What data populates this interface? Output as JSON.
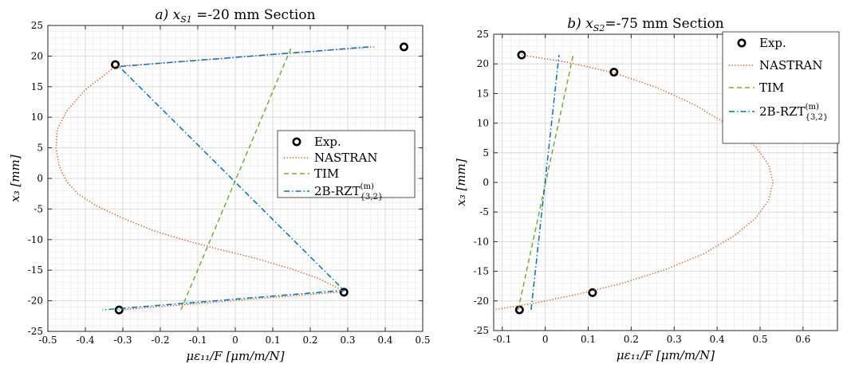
{
  "chart_data": [
    {
      "type": "line",
      "title_parts": {
        "pre": "a) x",
        "sub": "S1",
        "post": " =-20 mm Section"
      },
      "xlabel": "με₁₁/F [μm/m/N]",
      "ylabel": "x₃ [mm]",
      "xlim": [
        -0.5,
        0.5
      ],
      "ylim": [
        -25,
        25
      ],
      "xticks": [
        -0.5,
        -0.4,
        -0.3,
        -0.2,
        -0.1,
        0,
        0.1,
        0.2,
        0.3,
        0.4,
        0.5
      ],
      "xtick_labels": [
        "-0.5",
        "-0.4",
        "-0.3",
        "-0.2",
        "-0.1",
        "0",
        "0.1",
        "0.2",
        "0.3",
        "0.4",
        "0.5"
      ],
      "yticks": [
        -25,
        -20,
        -15,
        -10,
        -5,
        0,
        5,
        10,
        15,
        20,
        25
      ],
      "ytick_labels": [
        "-25",
        "-20",
        "-15",
        "-10",
        "-5",
        "0",
        "5",
        "10",
        "15",
        "20",
        "25"
      ],
      "grid": true,
      "legend_position": "center-right",
      "series": [
        {
          "name": "Exp.",
          "kind": "markers",
          "color": "#000000",
          "points": [
            [
              -0.32,
              18.6
            ],
            [
              0.45,
              21.5
            ],
            [
              0.29,
              -18.6
            ],
            [
              -0.31,
              -21.5
            ]
          ]
        },
        {
          "name": "NASTRAN",
          "kind": "dotted",
          "color": "#d95319",
          "points": [
            [
              0.37,
              21.5
            ],
            [
              -0.32,
              18.3
            ],
            [
              -0.4,
              14.5
            ],
            [
              -0.45,
              11.0
            ],
            [
              -0.475,
              8.0
            ],
            [
              -0.478,
              5.0
            ],
            [
              -0.47,
              2.0
            ],
            [
              -0.45,
              -0.5
            ],
            [
              -0.42,
              -2.5
            ],
            [
              -0.37,
              -4.5
            ],
            [
              -0.3,
              -6.5
            ],
            [
              -0.22,
              -8.5
            ],
            [
              -0.14,
              -10.0
            ],
            [
              -0.05,
              -11.5
            ],
            [
              0.05,
              -13.0
            ],
            [
              0.15,
              -14.8
            ],
            [
              0.22,
              -16.3
            ],
            [
              0.27,
              -17.8
            ],
            [
              0.29,
              -18.5
            ],
            [
              -0.31,
              -21.5
            ]
          ]
        },
        {
          "name": "TIM",
          "kind": "dashed",
          "color": "#77ac30",
          "points": [
            [
              -0.145,
              -21.5
            ],
            [
              0.15,
              21.5
            ]
          ]
        },
        {
          "name": "2B-RZT",
          "kind": "dashdot",
          "color": "#0072bd",
          "legend_label": {
            "pre": "2B-RZT",
            "sup": "(m)",
            "sub": "{3,2}"
          },
          "points": [
            [
              0.355,
              21.5
            ],
            [
              -0.31,
              18.3
            ],
            [
              0.29,
              -18.3
            ],
            [
              -0.355,
              -21.5
            ]
          ]
        }
      ]
    },
    {
      "type": "line",
      "title_parts": {
        "pre": "b) x",
        "sub": "S2",
        "post": "=-75 mm Section"
      },
      "xlabel": "με₁₁/F [μm/m/N]",
      "ylabel": "x₃ [mm]",
      "xlim": [
        -0.12,
        0.68
      ],
      "ylim": [
        -25,
        25
      ],
      "xticks": [
        -0.1,
        0,
        0.1,
        0.2,
        0.3,
        0.4,
        0.5,
        0.6
      ],
      "xtick_labels": [
        "-0.1",
        "0",
        "0.1",
        "0.2",
        "0.3",
        "0.4",
        "0.5",
        "0.6"
      ],
      "yticks": [
        -25,
        -20,
        -15,
        -10,
        -5,
        0,
        5,
        10,
        15,
        20,
        25
      ],
      "ytick_labels": [
        "-25",
        "-20",
        "-15",
        "-10",
        "-5",
        "0",
        "5",
        "10",
        "15",
        "20",
        "25"
      ],
      "grid": true,
      "legend_position": "top-right",
      "series": [
        {
          "name": "Exp.",
          "kind": "markers",
          "color": "#000000",
          "points": [
            [
              -0.055,
              21.5
            ],
            [
              0.16,
              18.6
            ],
            [
              0.11,
              -18.6
            ],
            [
              -0.06,
              -21.5
            ]
          ]
        },
        {
          "name": "NASTRAN",
          "kind": "dotted",
          "color": "#d95319",
          "points": [
            [
              -0.055,
              21.5
            ],
            [
              0.05,
              20.3
            ],
            [
              0.16,
              18.5
            ],
            [
              0.26,
              16.0
            ],
            [
              0.35,
              13.0
            ],
            [
              0.43,
              9.5
            ],
            [
              0.49,
              6.0
            ],
            [
              0.52,
              3.0
            ],
            [
              0.53,
              0.0
            ],
            [
              0.52,
              -3.0
            ],
            [
              0.49,
              -6.0
            ],
            [
              0.44,
              -9.0
            ],
            [
              0.37,
              -12.0
            ],
            [
              0.28,
              -14.7
            ],
            [
              0.18,
              -17.0
            ],
            [
              0.08,
              -18.8
            ],
            [
              -0.02,
              -20.3
            ],
            [
              -0.12,
              -21.5
            ]
          ]
        },
        {
          "name": "TIM",
          "kind": "dashed",
          "color": "#77ac30",
          "points": [
            [
              -0.063,
              -21.5
            ],
            [
              0.065,
              21.5
            ]
          ]
        },
        {
          "name": "2B-RZT",
          "kind": "dashdot",
          "color": "#0072bd",
          "legend_label": {
            "pre": "2B-RZT",
            "sup": "(m)",
            "sub": "{3,2}"
          },
          "points": [
            [
              -0.033,
              -21.5
            ],
            [
              0.032,
              21.5
            ]
          ]
        }
      ]
    }
  ]
}
